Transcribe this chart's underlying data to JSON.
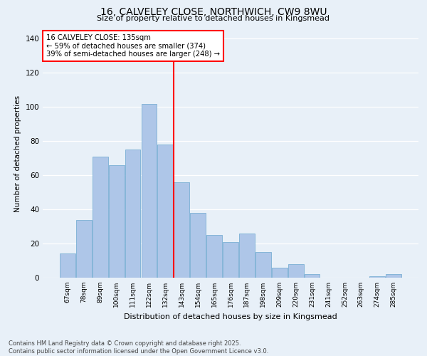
{
  "title": "16, CALVELEY CLOSE, NORTHWICH, CW9 8WU",
  "subtitle": "Size of property relative to detached houses in Kingsmead",
  "xlabel": "Distribution of detached houses by size in Kingsmead",
  "ylabel": "Number of detached properties",
  "bar_labels": [
    "67sqm",
    "78sqm",
    "89sqm",
    "100sqm",
    "111sqm",
    "122sqm",
    "132sqm",
    "143sqm",
    "154sqm",
    "165sqm",
    "176sqm",
    "187sqm",
    "198sqm",
    "209sqm",
    "220sqm",
    "231sqm",
    "241sqm",
    "252sqm",
    "263sqm",
    "274sqm",
    "285sqm"
  ],
  "bar_values": [
    14,
    34,
    71,
    66,
    75,
    102,
    78,
    56,
    38,
    25,
    21,
    26,
    15,
    6,
    8,
    2,
    0,
    0,
    0,
    1,
    2
  ],
  "bar_color": "#aec6e8",
  "bar_edge_color": "#7aafd4",
  "vline_x_index": 6,
  "vline_color": "red",
  "annotation_title": "16 CALVELEY CLOSE: 135sqm",
  "annotation_line1": "← 59% of detached houses are smaller (374)",
  "annotation_line2": "39% of semi-detached houses are larger (248) →",
  "annotation_box_color": "red",
  "ylim": [
    0,
    145
  ],
  "yticks": [
    0,
    20,
    40,
    60,
    80,
    100,
    120,
    140
  ],
  "bg_color": "#e8f0f8",
  "footer_line1": "Contains HM Land Registry data © Crown copyright and database right 2025.",
  "footer_line2": "Contains public sector information licensed under the Open Government Licence v3.0."
}
